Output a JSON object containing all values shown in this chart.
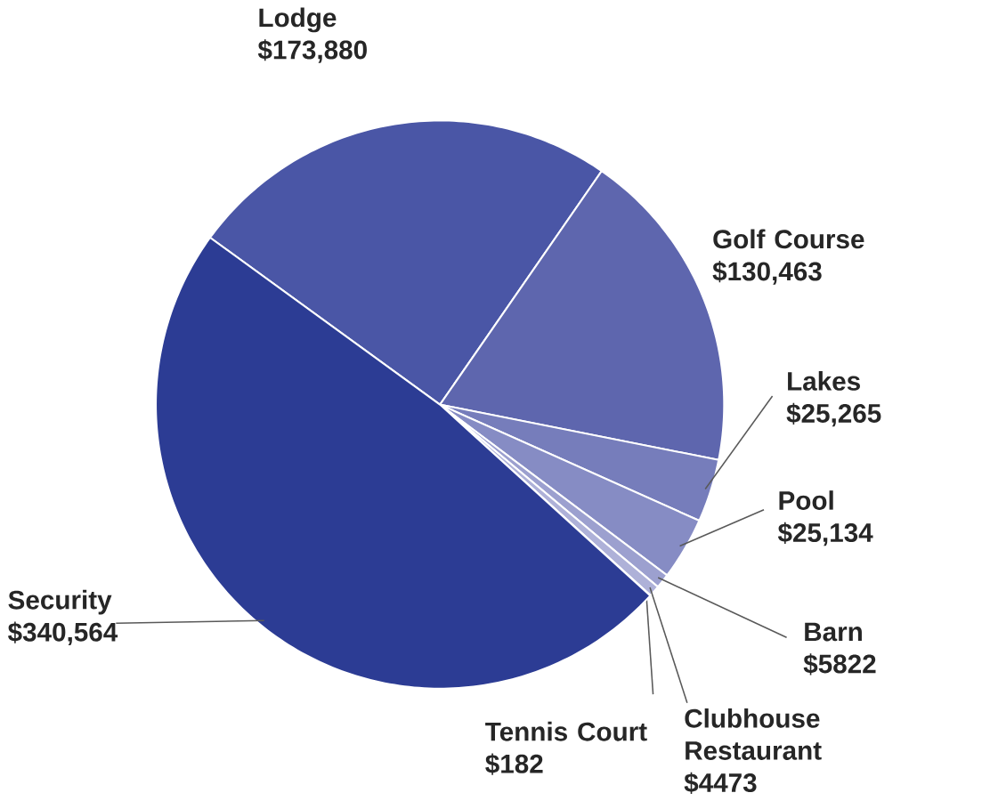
{
  "chart_data": {
    "type": "pie",
    "categories": [
      "Lodge",
      "Golf Course",
      "Lakes",
      "Pool",
      "Barn",
      "Clubhouse Restaurant",
      "Tennis Court",
      "Security"
    ],
    "values": [
      173880,
      130463,
      25265,
      25134,
      5822,
      4473,
      182,
      340564
    ],
    "value_labels": [
      "$173,880",
      "$130,463",
      "$25,265",
      "$25,134",
      "$5822",
      "$4473",
      "$182",
      "$340,564"
    ],
    "colors": [
      "#4a56a6",
      "#5e66ae",
      "#767dbb",
      "#868cc4",
      "#9ca0cf",
      "#aeb1d8",
      "#c2c4e2",
      "#2c3c94"
    ]
  }
}
